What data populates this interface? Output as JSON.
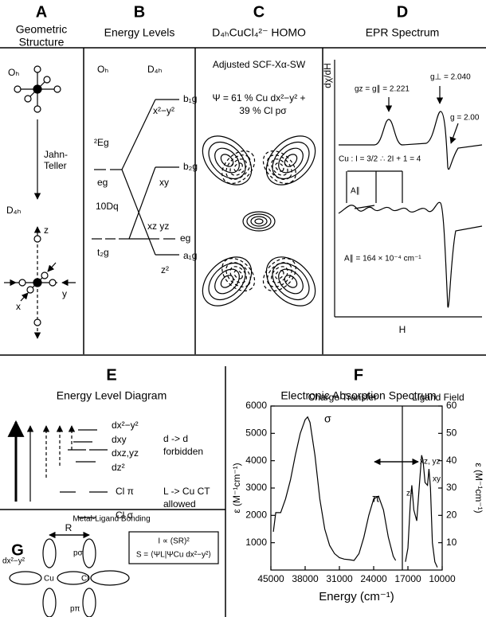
{
  "panel_a": {
    "letter": "A",
    "title_line1": "Geometric",
    "title_line2": "Structure",
    "oh": "Oₕ",
    "arrow_line1": "Jahn-",
    "arrow_line2": "Teller",
    "d4h": "D₄ₕ",
    "z": "z",
    "x": "x",
    "y": "y"
  },
  "panel_b": {
    "letter": "B",
    "title": "Energy Levels",
    "oh": "Oₕ",
    "d4h": "D₄ₕ",
    "b1g": "b₁g",
    "x2y2": "x²−y²",
    "term": "²Eg",
    "b2g": "b₂g",
    "eg_oh": "eg",
    "xy": "xy",
    "tenDq": "10Dq",
    "xzyz": "xz  yz",
    "eg_d4h": "eg",
    "t2g": "t₂g",
    "a1g": "a₁g",
    "z2": "z²"
  },
  "panel_c": {
    "letter": "C",
    "title": "D₄ₕCuCl₄²⁻ HOMO",
    "method": "Adjusted SCF-Xα-SW",
    "psi_line1": "Ψ = 61 % Cu dx²−y² +",
    "psi_line2": "39 % Cl pσ"
  },
  "panel_d": {
    "letter": "D",
    "title": "EPR Spectrum",
    "ylabel": "dχ/dH",
    "g_par": "gz = g∥ = 2.221",
    "g_perp": "g⊥ = 2.040",
    "g_free": "g = 2.00",
    "nuclear": "Cu : I = 3/2 ∴ 2I + 1 = 4",
    "a_par": "A∥",
    "a_value": "A∥ = 164 × 10⁻⁴ cm⁻¹",
    "xlabel": "H"
  },
  "panel_e": {
    "letter": "E",
    "title": "Energy Level Diagram",
    "dx2y2": "dx²−y²",
    "dxy": "dxy",
    "dxzyz": "dxz,yz",
    "dz2": "dz²",
    "dd_line1": "d -> d",
    "dd_line2": "forbidden",
    "cl_pi": "Cl π",
    "cl_sigma": "Cl σ",
    "ct_line1": "L -> Cu CT",
    "ct_line2": "allowed"
  },
  "panel_g": {
    "letter": "G",
    "title": "Metal-Ligand Bonding",
    "r": "R",
    "d": "dx²−y²",
    "cu": "Cu",
    "cl": "Cl",
    "p_sigma": "pσ",
    "p_pi": "pπ",
    "intensity": "I ∝ (SR)²",
    "overlap": "S = ⟨ΨL|ΨCu dx²−y²⟩"
  },
  "panel_f": {
    "letter": "F"
  },
  "chart_data": {
    "type": "line",
    "title": "Electronic Absorption Spectrum",
    "xlabel": "Energy (cm⁻¹)",
    "ylabel": "ε (M⁻¹cm⁻¹)",
    "y2label": "ε (M⁻¹cm⁻¹)",
    "xlim": [
      45000,
      10000
    ],
    "xticks": [
      45000,
      38000,
      31000,
      24000,
      17000,
      10000
    ],
    "ylim": [
      0,
      6000
    ],
    "yticks": [
      1000,
      2000,
      3000,
      4000,
      5000,
      6000
    ],
    "y2lim": [
      0,
      60
    ],
    "y2ticks": [
      10,
      20,
      30,
      40,
      50,
      60
    ],
    "annotations": [
      "σ",
      "π",
      "z²",
      "xz, yz",
      "xy"
    ],
    "series": [
      {
        "name": "Charge Transfer",
        "color": "#000000",
        "x": [
          44500,
          44000,
          43000,
          42000,
          41000,
          40000,
          39000,
          38000,
          37500,
          37000,
          36000,
          35000,
          34000,
          33000,
          32000,
          31000,
          30000,
          29000,
          28000,
          27000,
          26000,
          25000,
          24000,
          23000,
          22000,
          21000,
          20000,
          19500
        ],
        "values": [
          1400,
          2100,
          2100,
          2600,
          3300,
          4200,
          5000,
          5500,
          5600,
          5400,
          4200,
          2600,
          1500,
          900,
          600,
          450,
          400,
          380,
          350,
          600,
          1200,
          2000,
          2600,
          2700,
          2200,
          1200,
          500,
          350
        ]
      },
      {
        "name": "Ligand Field",
        "color": "#000000",
        "axis": "y2",
        "x": [
          17500,
          17000,
          16500,
          16200,
          15800,
          15200,
          14700,
          14200,
          13900,
          13500,
          13000,
          12700,
          12400,
          12000,
          11500,
          11000
        ],
        "values": [
          3,
          8,
          25,
          31,
          22,
          18,
          30,
          42,
          40,
          32,
          31,
          37,
          30,
          10,
          3,
          1
        ]
      }
    ]
  }
}
